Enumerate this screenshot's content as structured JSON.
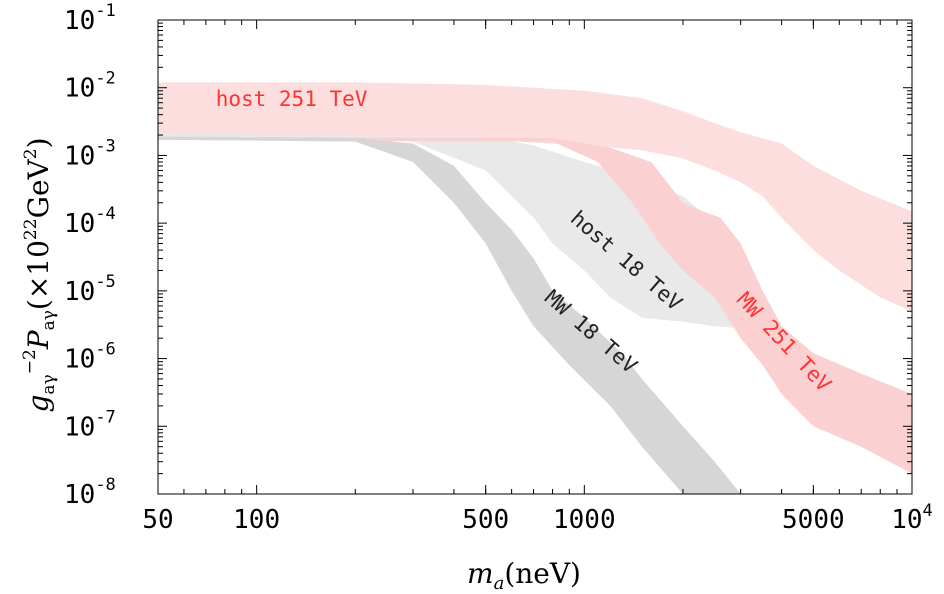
{
  "chart_data": {
    "type": "area",
    "x_scale": "log",
    "y_scale": "log",
    "xlim": [
      50,
      10000
    ],
    "ylim": [
      1e-08,
      0.1
    ],
    "xlabel_main": "m",
    "xlabel_sub": "a",
    "xlabel_unit": "(neV)",
    "ylabel_main": "g",
    "ylabel_sub": "aγ",
    "ylabel_exp": "−2",
    "ylabel_p": "P",
    "ylabel_psub": "aγ",
    "ylabel_unit_open": "(×10",
    "ylabel_unit_exp": "22",
    "ylabel_unit_rest": "GeV",
    "ylabel_unit_exp2": "2",
    "ylabel_unit_close": ")",
    "x_ticks": [
      {
        "value": 50,
        "label": "50"
      },
      {
        "value": 100,
        "label": "100"
      },
      {
        "value": 500,
        "label": "500"
      },
      {
        "value": 1000,
        "label": "1000"
      },
      {
        "value": 5000,
        "label": "5000"
      },
      {
        "value": 10000,
        "label": "10",
        "exp": "4"
      }
    ],
    "y_ticks": [
      {
        "value": 1e-08,
        "base": "10",
        "exp": "-8"
      },
      {
        "value": 1e-07,
        "base": "10",
        "exp": "-7"
      },
      {
        "value": 1e-06,
        "base": "10",
        "exp": "-6"
      },
      {
        "value": 1e-05,
        "base": "10",
        "exp": "-5"
      },
      {
        "value": 0.0001,
        "base": "10",
        "exp": "-4"
      },
      {
        "value": 0.001,
        "base": "10",
        "exp": "-3"
      },
      {
        "value": 0.01,
        "base": "10",
        "exp": "-2"
      },
      {
        "value": 0.1,
        "base": "10",
        "exp": "-1"
      }
    ],
    "series": [
      {
        "color": "#fcdede",
        "upper": [
          [
            50,
            0.012
          ],
          [
            200,
            0.012
          ],
          [
            500,
            0.011
          ],
          [
            1000,
            0.009
          ],
          [
            1500,
            0.007
          ],
          [
            2000,
            0.0045
          ],
          [
            2500,
            0.003
          ],
          [
            3000,
            0.0022
          ],
          [
            4000,
            0.0015
          ],
          [
            5000,
            0.0007
          ],
          [
            7000,
            0.0003
          ],
          [
            10000,
            0.00015
          ]
        ],
        "lower": [
          [
            50,
            0.0018
          ],
          [
            500,
            0.0017
          ],
          [
            1000,
            0.0014
          ],
          [
            1500,
            0.0012
          ],
          [
            2000,
            0.0009
          ],
          [
            2500,
            0.0006
          ],
          [
            3000,
            0.0004
          ],
          [
            3500,
            0.00025
          ],
          [
            4000,
            0.00012
          ],
          [
            5000,
            4e-05
          ],
          [
            6000,
            2e-05
          ],
          [
            8000,
            8e-06
          ],
          [
            10000,
            5e-06
          ]
        ]
      },
      {
        "color": "#e9e9e9",
        "upper": [
          [
            50,
            0.0021
          ],
          [
            150,
            0.002
          ],
          [
            300,
            0.002
          ],
          [
            500,
            0.0019
          ],
          [
            700,
            0.0014
          ],
          [
            1000,
            0.0008
          ],
          [
            1300,
            0.00055
          ],
          [
            1500,
            0.0004
          ],
          [
            2000,
            0.00025
          ],
          [
            2500,
            0.0001
          ],
          [
            3000,
            5e-05
          ],
          [
            3300,
            1.5e-05
          ]
        ],
        "lower": [
          [
            50,
            0.0017
          ],
          [
            300,
            0.0016
          ],
          [
            500,
            0.0006
          ],
          [
            600,
            0.00025
          ],
          [
            700,
            0.00012
          ],
          [
            800,
            5e-05
          ],
          [
            1000,
            2e-05
          ],
          [
            1200,
            8e-06
          ],
          [
            1500,
            4e-06
          ],
          [
            2000,
            3.5e-06
          ],
          [
            2500,
            3e-06
          ],
          [
            3000,
            2.8e-06
          ],
          [
            3300,
            2.5e-06
          ]
        ]
      },
      {
        "color": "#fad0d0",
        "upper": [
          [
            50,
            0.0019
          ],
          [
            800,
            0.0018
          ],
          [
            1200,
            0.0013
          ],
          [
            1600,
            0.0008
          ],
          [
            2000,
            0.0002
          ],
          [
            2300,
            0.00015
          ],
          [
            2600,
            0.00012
          ],
          [
            3000,
            5e-05
          ],
          [
            3500,
            1e-05
          ],
          [
            4000,
            3e-06
          ],
          [
            5000,
            1.2e-06
          ],
          [
            7000,
            6e-07
          ],
          [
            10000,
            3e-07
          ]
        ],
        "lower": [
          [
            50,
            0.0017
          ],
          [
            800,
            0.0016
          ],
          [
            1100,
            0.0008
          ],
          [
            1400,
            0.0002
          ],
          [
            1700,
            5e-05
          ],
          [
            2000,
            2e-05
          ],
          [
            2500,
            8e-06
          ],
          [
            3000,
            2e-06
          ],
          [
            3500,
            8e-07
          ],
          [
            4000,
            3e-07
          ],
          [
            5000,
            1e-07
          ],
          [
            7000,
            5e-08
          ],
          [
            10000,
            2e-08
          ]
        ]
      },
      {
        "color": "#d6d6d6",
        "upper": [
          [
            50,
            0.0019
          ],
          [
            200,
            0.0018
          ],
          [
            300,
            0.0015
          ],
          [
            400,
            0.0007
          ],
          [
            500,
            0.0002
          ],
          [
            600,
            8e-05
          ],
          [
            700,
            3e-05
          ],
          [
            800,
            1e-05
          ],
          [
            1000,
            4e-06
          ],
          [
            1300,
            1.2e-06
          ],
          [
            1500,
            5e-07
          ],
          [
            2000,
            1e-07
          ],
          [
            2500,
            3e-08
          ],
          [
            3000,
            1e-08
          ],
          [
            4000,
            5e-09
          ]
        ],
        "lower": [
          [
            50,
            0.0017
          ],
          [
            200,
            0.0016
          ],
          [
            300,
            0.0008
          ],
          [
            400,
            0.0002
          ],
          [
            500,
            5e-05
          ],
          [
            600,
            1e-05
          ],
          [
            700,
            3e-06
          ],
          [
            900,
            8e-07
          ],
          [
            1200,
            2e-07
          ],
          [
            1500,
            5e-08
          ],
          [
            2000,
            1e-08
          ],
          [
            2500,
            5e-09
          ]
        ]
      }
    ],
    "annotations": [
      {
        "text": "host 251 TeV",
        "x": 75,
        "y": 0.0054,
        "angle": 0,
        "color": "#ff3333"
      },
      {
        "text": "host 18 TeV",
        "x": 900,
        "y": 0.00011,
        "angle": 41,
        "color": "#222222"
      },
      {
        "text": "MW 18 TeV",
        "x": 750,
        "y": 7.4e-06,
        "angle": 41,
        "color": "#222222"
      },
      {
        "text": "MW 251 TeV",
        "x": 2900,
        "y": 7.2e-06,
        "angle": 47,
        "color": "#ff3333"
      }
    ]
  }
}
